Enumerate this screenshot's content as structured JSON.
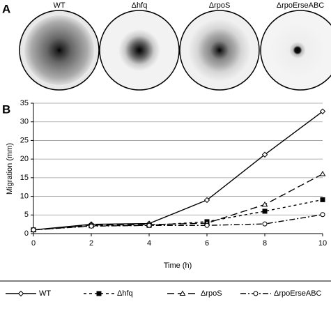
{
  "panel_a": {
    "label": "A",
    "plates": [
      "WT",
      "Δhfq",
      "ΔrpoS",
      "ΔrpoErseABC"
    ]
  },
  "panel_b": {
    "label": "B"
  },
  "chart_data": {
    "type": "line",
    "x_label": "Time (h)",
    "y_label": "Migration (mm)",
    "x": [
      0,
      2,
      4,
      6,
      8,
      10
    ],
    "xlim": [
      0,
      10
    ],
    "xticks": [
      0,
      2,
      4,
      6,
      8,
      10
    ],
    "ylim": [
      0,
      35
    ],
    "yticks": [
      0,
      5,
      10,
      15,
      20,
      25,
      30,
      35
    ],
    "grid": true,
    "series": [
      {
        "name": "WT",
        "color": "#000000",
        "dash": "solid",
        "marker": "diamond",
        "values": [
          1,
          2.5,
          2.7,
          9,
          21.2,
          32.8
        ]
      },
      {
        "name": "Δhfq",
        "color": "#000000",
        "dash": "short",
        "marker": "square",
        "values": [
          1,
          2.1,
          2.2,
          3.2,
          6,
          9.1
        ]
      },
      {
        "name": "ΔrpoS",
        "color": "#000000",
        "dash": "long",
        "marker": "triangle",
        "values": [
          1,
          2.3,
          2.4,
          2.8,
          7.8,
          16
        ]
      },
      {
        "name": "ΔrpoErseABC",
        "color": "#000000",
        "dash": "dashdot",
        "marker": "circle",
        "values": [
          1,
          2.0,
          2.2,
          2.2,
          2.6,
          5.1
        ]
      }
    ]
  }
}
